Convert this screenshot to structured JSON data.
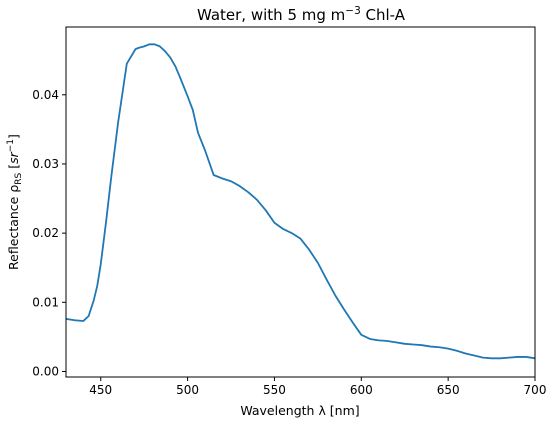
{
  "chart_data": {
    "type": "line",
    "title": {
      "prefix": "Water, with 5 mg m",
      "superscript": "−3",
      "suffix": " Chl-A"
    },
    "xlabel": "Wavelength λ [nm]",
    "ylabel": {
      "prefix": "Reflectance ρ",
      "subscript": "RS",
      "unit_open": " [",
      "unit": "sr",
      "unit_superscript": "−1",
      "unit_close": "]"
    },
    "xlim": [
      430,
      700
    ],
    "ylim": [
      -0.0008,
      0.0498
    ],
    "xticks": [
      450,
      500,
      550,
      600,
      650,
      700
    ],
    "yticks": [
      0.0,
      0.01,
      0.02,
      0.03,
      0.04
    ],
    "ytick_labels": [
      "0.00",
      "0.01",
      "0.02",
      "0.03",
      "0.04"
    ],
    "grid": false,
    "legend": null,
    "series_color": "#1f77b4",
    "series": [
      {
        "x": [
          430,
          435,
          440,
          443,
          446,
          448,
          450,
          453,
          456,
          460,
          465,
          470,
          472,
          475,
          478,
          481,
          484,
          487,
          490,
          493,
          496,
          500,
          503,
          506,
          510,
          515,
          520,
          525,
          530,
          535,
          540,
          545,
          550,
          555,
          560,
          565,
          570,
          575,
          580,
          585,
          590,
          595,
          600,
          605,
          610,
          615,
          620,
          625,
          630,
          635,
          640,
          645,
          650,
          655,
          660,
          665,
          670,
          675,
          680,
          685,
          690,
          695,
          700
        ],
        "y": [
          0.0076,
          0.0074,
          0.0073,
          0.008,
          0.0103,
          0.0124,
          0.0155,
          0.0215,
          0.028,
          0.036,
          0.0445,
          0.0466,
          0.0468,
          0.047,
          0.0473,
          0.0473,
          0.047,
          0.0463,
          0.0454,
          0.0441,
          0.0423,
          0.0398,
          0.0378,
          0.0345,
          0.032,
          0.0284,
          0.0279,
          0.0275,
          0.0268,
          0.0259,
          0.0248,
          0.0233,
          0.0215,
          0.0206,
          0.02,
          0.0192,
          0.0176,
          0.0157,
          0.0133,
          0.011,
          0.009,
          0.0071,
          0.0053,
          0.0047,
          0.0045,
          0.0044,
          0.0042,
          0.004,
          0.0039,
          0.0038,
          0.0036,
          0.0035,
          0.0033,
          0.003,
          0.0026,
          0.0023,
          0.002,
          0.0019,
          0.0019,
          0.002,
          0.0021,
          0.0021,
          0.0019
        ]
      }
    ]
  }
}
